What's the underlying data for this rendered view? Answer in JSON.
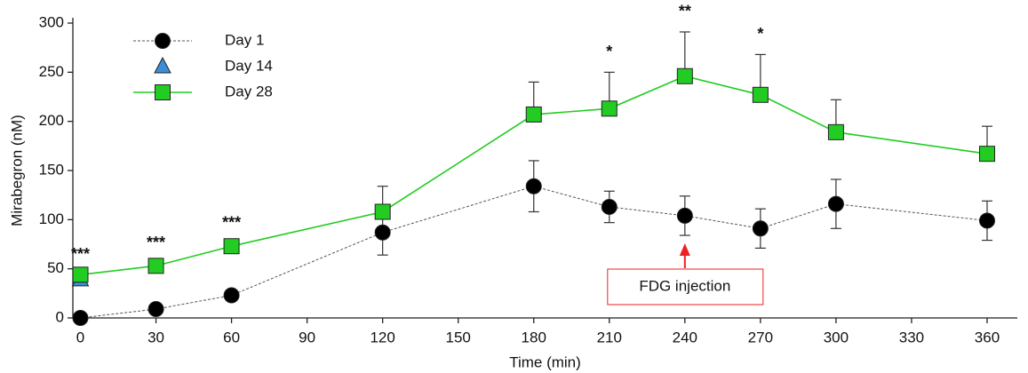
{
  "chart_data": {
    "type": "line",
    "x_label": "Time (min)",
    "y_label": "Mirabegron (nM)",
    "xlim": [
      -3,
      372
    ],
    "xticks": [
      0,
      30,
      60,
      90,
      120,
      150,
      180,
      210,
      240,
      270,
      300,
      330,
      360
    ],
    "ylim": [
      0,
      300
    ],
    "yticks": [
      0,
      50,
      100,
      150,
      200,
      250,
      300
    ],
    "grid": false,
    "legend": "upper left",
    "series": [
      {
        "name": "Day 1",
        "color": "#000000",
        "marker": "circle",
        "linestyle": "dotted",
        "error_direction": "both",
        "x": [
          0,
          30,
          60,
          120,
          180,
          210,
          240,
          270,
          300,
          360
        ],
        "values": [
          0,
          9,
          23,
          87,
          134,
          113,
          104,
          91,
          116,
          99
        ],
        "errors": [
          null,
          null,
          5,
          23,
          26,
          16,
          20,
          20,
          25,
          20
        ]
      },
      {
        "name": "Day 14",
        "color": "#3a8fd8",
        "marker": "triangle",
        "linestyle": "none",
        "error_direction": "up",
        "x": [
          0
        ],
        "values": [
          39
        ],
        "errors": [
          null
        ]
      },
      {
        "name": "Day 28",
        "color": "#22cc22",
        "marker": "square",
        "linestyle": "solid",
        "error_direction": "up",
        "x": [
          0,
          30,
          60,
          120,
          180,
          210,
          240,
          270,
          300,
          360
        ],
        "values": [
          44,
          53,
          73,
          108,
          207,
          213,
          246,
          227,
          189,
          167
        ],
        "errors": [
          null,
          3,
          3,
          26,
          33,
          37,
          45,
          41,
          33,
          28
        ]
      }
    ],
    "significance": [
      {
        "x": 0,
        "label": "***"
      },
      {
        "x": 30,
        "label": "***"
      },
      {
        "x": 60,
        "label": "***"
      },
      {
        "x": 210,
        "label": "*"
      },
      {
        "x": 240,
        "label": "**"
      },
      {
        "x": 270,
        "label": "*"
      }
    ],
    "annotation": {
      "text": "FDG injection",
      "x": 240,
      "color": "#ee2222"
    }
  }
}
